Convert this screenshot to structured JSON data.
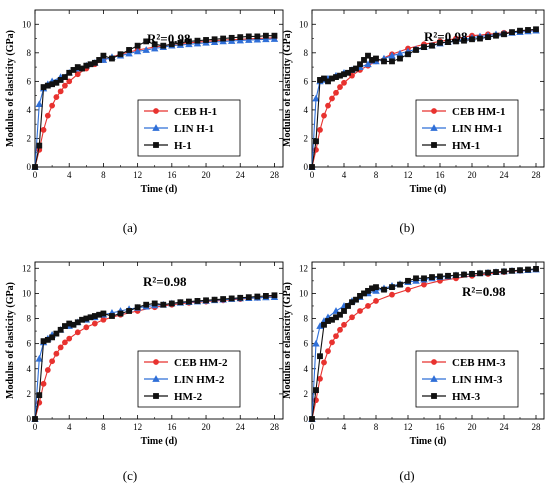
{
  "chart_data": [
    {
      "type": "line",
      "panel_label": "(a)",
      "annotation": "R²=0.98",
      "xlabel": "Time (d)",
      "ylabel": "Modulus of elasticity (GPa)",
      "xlim": [
        0,
        29
      ],
      "ylim": [
        0,
        11
      ],
      "xticks": [
        "0",
        "4",
        "8",
        "12",
        "16",
        "20",
        "24",
        "28"
      ],
      "yticks": [
        "0",
        "2",
        "4",
        "6",
        "8",
        "10"
      ],
      "legend_position": "bottom-right",
      "series": [
        {
          "name": "CEB H-1",
          "color": "#e8322f",
          "marker": "circle",
          "x": [
            0,
            0.5,
            1,
            1.5,
            2,
            2.5,
            3,
            3.5,
            4,
            5,
            6,
            7,
            8,
            10,
            12,
            14,
            16,
            18,
            20,
            22,
            24,
            26,
            28
          ],
          "y": [
            0,
            1.2,
            2.6,
            3.6,
            4.3,
            4.9,
            5.3,
            5.7,
            6.0,
            6.5,
            6.9,
            7.2,
            7.5,
            7.9,
            8.2,
            8.4,
            8.6,
            8.7,
            8.8,
            8.9,
            8.95,
            9.0,
            9.05
          ]
        },
        {
          "name": "LIN H-1",
          "color": "#2f6fd8",
          "marker": "triangle",
          "x": [
            0,
            0.5,
            1,
            1.5,
            2,
            3,
            4,
            5,
            6,
            7,
            8,
            9,
            10,
            11,
            12,
            13,
            14,
            15,
            16,
            17,
            18,
            19,
            20,
            21,
            22,
            23,
            24,
            25,
            26,
            27,
            28
          ],
          "y": [
            0,
            4.4,
            5.5,
            5.8,
            6.0,
            6.3,
            6.6,
            6.9,
            7.1,
            7.3,
            7.5,
            7.7,
            7.8,
            7.95,
            8.1,
            8.2,
            8.3,
            8.4,
            8.5,
            8.55,
            8.6,
            8.65,
            8.7,
            8.75,
            8.8,
            8.83,
            8.86,
            8.9,
            8.92,
            8.95,
            8.97
          ]
        },
        {
          "name": "H-1",
          "color": "#111111",
          "marker": "square",
          "x": [
            0,
            0.5,
            1,
            1.5,
            2,
            2.5,
            3,
            3.5,
            4,
            4.5,
            5,
            5.5,
            6,
            6.5,
            7,
            7.5,
            8,
            9,
            10,
            11,
            12,
            13,
            14,
            15,
            16,
            17,
            18,
            19,
            20,
            21,
            22,
            23,
            24,
            25,
            26,
            27,
            28
          ],
          "y": [
            0,
            1.5,
            5.6,
            5.7,
            5.8,
            5.9,
            6.1,
            6.3,
            6.6,
            6.8,
            7.0,
            6.9,
            7.1,
            7.2,
            7.3,
            7.5,
            7.8,
            7.6,
            7.9,
            8.2,
            8.5,
            8.8,
            8.6,
            8.5,
            8.6,
            8.7,
            8.8,
            8.85,
            8.9,
            8.95,
            9.0,
            9.05,
            9.1,
            9.15,
            9.15,
            9.2,
            9.2
          ]
        }
      ]
    },
    {
      "type": "line",
      "panel_label": "(b)",
      "annotation": "R²=0.98",
      "xlabel": "Time (d)",
      "ylabel": "Modulus of elasticity (GPa)",
      "xlim": [
        0,
        29
      ],
      "ylim": [
        0,
        11
      ],
      "xticks": [
        "0",
        "4",
        "8",
        "12",
        "16",
        "20",
        "24",
        "28"
      ],
      "yticks": [
        "0",
        "2",
        "4",
        "6",
        "8",
        "10"
      ],
      "legend_position": "bottom-right",
      "series": [
        {
          "name": "CEB HM-1",
          "color": "#e8322f",
          "marker": "circle",
          "x": [
            0,
            0.5,
            1,
            1.5,
            2,
            2.5,
            3,
            3.5,
            4,
            5,
            6,
            7,
            8,
            10,
            12,
            14,
            16,
            18,
            20,
            22,
            24,
            26,
            28
          ],
          "y": [
            0,
            1.2,
            2.6,
            3.6,
            4.3,
            4.8,
            5.2,
            5.6,
            5.9,
            6.4,
            6.8,
            7.1,
            7.4,
            7.9,
            8.3,
            8.6,
            8.8,
            9.0,
            9.2,
            9.3,
            9.4,
            9.5,
            9.6
          ]
        },
        {
          "name": "LIN HM-1",
          "color": "#2f6fd8",
          "marker": "triangle",
          "x": [
            0,
            0.5,
            1,
            1.5,
            2,
            3,
            4,
            5,
            6,
            7,
            8,
            9,
            10,
            11,
            12,
            13,
            14,
            15,
            16,
            17,
            18,
            19,
            20,
            21,
            22,
            23,
            24,
            25,
            26,
            27,
            28
          ],
          "y": [
            0,
            4.8,
            6.0,
            6.1,
            6.2,
            6.4,
            6.6,
            6.8,
            7.0,
            7.2,
            7.4,
            7.6,
            7.8,
            7.95,
            8.1,
            8.25,
            8.4,
            8.5,
            8.65,
            8.75,
            8.85,
            8.95,
            9.05,
            9.15,
            9.2,
            9.3,
            9.35,
            9.4,
            9.45,
            9.5,
            9.55
          ]
        },
        {
          "name": "HM-1",
          "color": "#111111",
          "marker": "square",
          "x": [
            0,
            0.5,
            1,
            1.5,
            2,
            2.5,
            3,
            3.5,
            4,
            4.5,
            5,
            5.5,
            6,
            6.5,
            7,
            7.5,
            8,
            9,
            10,
            11,
            12,
            13,
            14,
            15,
            16,
            17,
            18,
            19,
            20,
            21,
            22,
            23,
            24,
            25,
            26,
            27,
            28
          ],
          "y": [
            0,
            1.8,
            6.1,
            6.2,
            6.0,
            6.2,
            6.3,
            6.4,
            6.5,
            6.6,
            6.8,
            6.9,
            7.2,
            7.5,
            7.8,
            7.5,
            7.6,
            7.4,
            7.4,
            7.6,
            7.9,
            8.2,
            8.4,
            8.5,
            8.7,
            8.75,
            8.8,
            8.85,
            8.95,
            9.0,
            9.1,
            9.2,
            9.3,
            9.45,
            9.55,
            9.6,
            9.65
          ]
        }
      ]
    },
    {
      "type": "line",
      "panel_label": "(c)",
      "annotation": "R²=0.98",
      "xlabel": "Time (d)",
      "ylabel": "Modulus of elasticity (GPa)",
      "xlim": [
        0,
        29
      ],
      "ylim": [
        0,
        12.5
      ],
      "xticks": [
        "0",
        "4",
        "8",
        "12",
        "16",
        "20",
        "24",
        "28"
      ],
      "yticks": [
        "0",
        "2",
        "4",
        "6",
        "8",
        "10",
        "12"
      ],
      "legend_position": "bottom-right",
      "series": [
        {
          "name": "CEB HM-2",
          "color": "#e8322f",
          "marker": "circle",
          "x": [
            0,
            0.5,
            1,
            1.5,
            2,
            2.5,
            3,
            3.5,
            4,
            5,
            6,
            7,
            8,
            10,
            12,
            14,
            16,
            18,
            20,
            22,
            24,
            26,
            28
          ],
          "y": [
            0,
            1.3,
            2.8,
            3.9,
            4.6,
            5.2,
            5.7,
            6.1,
            6.4,
            6.9,
            7.3,
            7.6,
            7.9,
            8.3,
            8.6,
            8.9,
            9.1,
            9.25,
            9.35,
            9.45,
            9.55,
            9.65,
            9.75
          ]
        },
        {
          "name": "LIN HM-2",
          "color": "#2f6fd8",
          "marker": "triangle",
          "x": [
            0,
            0.5,
            1,
            1.5,
            2,
            3,
            4,
            5,
            6,
            7,
            8,
            9,
            10,
            11,
            12,
            13,
            14,
            15,
            16,
            17,
            18,
            19,
            20,
            21,
            22,
            23,
            24,
            25,
            26,
            27,
            28
          ],
          "y": [
            0,
            4.8,
            6.1,
            6.4,
            6.7,
            7.1,
            7.4,
            7.7,
            7.9,
            8.1,
            8.3,
            8.45,
            8.6,
            8.75,
            8.85,
            8.95,
            9.05,
            9.1,
            9.2,
            9.25,
            9.3,
            9.35,
            9.4,
            9.45,
            9.5,
            9.55,
            9.6,
            9.62,
            9.65,
            9.68,
            9.7
          ]
        },
        {
          "name": "HM-2",
          "color": "#111111",
          "marker": "square",
          "x": [
            0,
            0.5,
            1,
            1.5,
            2,
            2.5,
            3,
            3.5,
            4,
            4.5,
            5,
            5.5,
            6,
            6.5,
            7,
            7.5,
            8,
            9,
            10,
            11,
            12,
            13,
            14,
            15,
            16,
            17,
            18,
            19,
            20,
            21,
            22,
            23,
            24,
            25,
            26,
            27,
            28
          ],
          "y": [
            0,
            1.9,
            6.2,
            6.3,
            6.5,
            6.8,
            7.1,
            7.4,
            7.6,
            7.5,
            7.7,
            7.9,
            8.0,
            8.1,
            8.2,
            8.3,
            8.4,
            8.2,
            8.4,
            8.6,
            8.9,
            9.1,
            9.2,
            9.1,
            9.2,
            9.3,
            9.35,
            9.4,
            9.45,
            9.5,
            9.55,
            9.6,
            9.65,
            9.7,
            9.75,
            9.8,
            9.85
          ]
        }
      ]
    },
    {
      "type": "line",
      "panel_label": "(d)",
      "annotation": "R²=0.98",
      "xlabel": "Time (d)",
      "ylabel": "Modulus of elasticity (GPa)",
      "xlim": [
        0,
        29
      ],
      "ylim": [
        0,
        12.5
      ],
      "xticks": [
        "0",
        "4",
        "8",
        "12",
        "16",
        "20",
        "24",
        "28"
      ],
      "yticks": [
        "0",
        "2",
        "4",
        "6",
        "8",
        "10",
        "12"
      ],
      "legend_position": "bottom-right",
      "series": [
        {
          "name": "CEB HM-3",
          "color": "#e8322f",
          "marker": "circle",
          "x": [
            0,
            0.5,
            1,
            1.5,
            2,
            2.5,
            3,
            3.5,
            4,
            5,
            6,
            7,
            8,
            10,
            12,
            14,
            16,
            18,
            20,
            22,
            24,
            26,
            28
          ],
          "y": [
            0,
            1.5,
            3.2,
            4.5,
            5.4,
            6.1,
            6.6,
            7.1,
            7.5,
            8.1,
            8.6,
            9.0,
            9.4,
            9.9,
            10.3,
            10.7,
            11.0,
            11.2,
            11.4,
            11.55,
            11.7,
            11.8,
            11.9
          ]
        },
        {
          "name": "LIN HM-3",
          "color": "#2f6fd8",
          "marker": "triangle",
          "x": [
            0,
            0.5,
            1,
            1.5,
            2,
            3,
            4,
            5,
            6,
            7,
            8,
            9,
            10,
            11,
            12,
            13,
            14,
            15,
            16,
            17,
            18,
            19,
            20,
            21,
            22,
            23,
            24,
            25,
            26,
            27,
            28
          ],
          "y": [
            0,
            6.0,
            7.4,
            7.8,
            8.1,
            8.6,
            9.0,
            9.4,
            9.7,
            10.0,
            10.2,
            10.4,
            10.6,
            10.75,
            10.9,
            11.0,
            11.1,
            11.2,
            11.3,
            11.35,
            11.45,
            11.5,
            11.55,
            11.6,
            11.65,
            11.7,
            11.75,
            11.8,
            11.82,
            11.85,
            11.9
          ]
        },
        {
          "name": "HM-3",
          "color": "#111111",
          "marker": "square",
          "x": [
            0,
            0.5,
            1,
            1.5,
            2,
            2.5,
            3,
            3.5,
            4,
            4.5,
            5,
            5.5,
            6,
            6.5,
            7,
            7.5,
            8,
            9,
            10,
            11,
            12,
            13,
            14,
            15,
            16,
            17,
            18,
            19,
            20,
            21,
            22,
            23,
            24,
            25,
            26,
            27,
            28
          ],
          "y": [
            0,
            2.3,
            5.0,
            7.5,
            7.8,
            7.9,
            8.1,
            8.3,
            8.6,
            9.0,
            9.3,
            9.5,
            9.8,
            10.0,
            10.2,
            10.4,
            10.5,
            10.3,
            10.5,
            10.7,
            11.0,
            11.2,
            11.2,
            11.3,
            11.35,
            11.4,
            11.45,
            11.5,
            11.55,
            11.6,
            11.65,
            11.7,
            11.75,
            11.8,
            11.85,
            11.9,
            11.95
          ]
        }
      ]
    }
  ]
}
